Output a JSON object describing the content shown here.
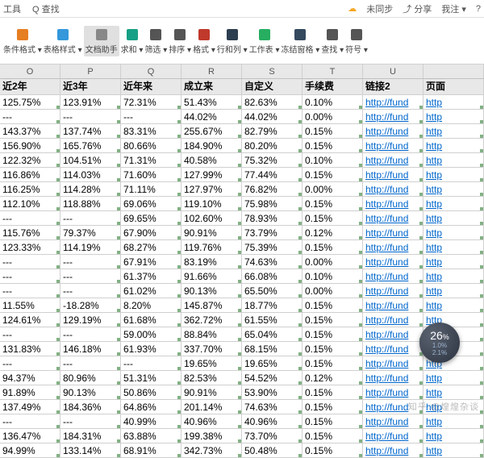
{
  "topbar": {
    "left": [
      "工具",
      "Q 查找"
    ],
    "sync": "未同步",
    "share": "分享",
    "me": "我注",
    "help": "?"
  },
  "ribbon": [
    {
      "icon": "#e67e22",
      "label": "条件格式",
      "dd": true
    },
    {
      "icon": "#3498db",
      "label": "表格样式",
      "dd": true
    },
    {
      "icon": "#888",
      "label": "文档助手",
      "active": true
    },
    {
      "icon": "#16a085",
      "label": "求和",
      "dd": true
    },
    {
      "icon": "#555",
      "label": "筛选",
      "dd": true
    },
    {
      "icon": "#555",
      "label": "排序",
      "dd": true
    },
    {
      "icon": "#c0392b",
      "label": "格式",
      "dd": true
    },
    {
      "icon": "#2c3e50",
      "label": "行和列",
      "dd": true
    },
    {
      "icon": "#27ae60",
      "label": "工作表",
      "dd": true
    },
    {
      "icon": "#34495e",
      "label": "冻结窗格",
      "dd": true
    },
    {
      "icon": "#555",
      "label": "查找",
      "dd": true
    },
    {
      "icon": "#555",
      "label": "符号",
      "dd": true
    }
  ],
  "columns_letters": [
    "O",
    "P",
    "Q",
    "R",
    "S",
    "T",
    "U",
    ""
  ],
  "headers": [
    "近2年",
    "近3年",
    "近年来",
    "成立来",
    "自定义",
    "手续费",
    "链接2",
    "页面"
  ],
  "rows": [
    [
      "125.75%",
      "123.91%",
      "72.31%",
      "51.43%",
      "82.63%",
      "0.10%",
      "http://fund",
      "http"
    ],
    [
      "---",
      "---",
      "---",
      "44.02%",
      "44.02%",
      "0.00%",
      "http://fund",
      "http"
    ],
    [
      "143.37%",
      "137.74%",
      "83.31%",
      "255.67%",
      "82.79%",
      "0.15%",
      "http://fund",
      "http"
    ],
    [
      "156.90%",
      "165.76%",
      "80.66%",
      "184.90%",
      "80.20%",
      "0.15%",
      "http://fund",
      "http"
    ],
    [
      "122.32%",
      "104.51%",
      "71.31%",
      "40.58%",
      "75.32%",
      "0.10%",
      "http://fund",
      "http"
    ],
    [
      "116.86%",
      "114.03%",
      "71.60%",
      "127.99%",
      "77.44%",
      "0.15%",
      "http://fund",
      "http"
    ],
    [
      "116.25%",
      "114.28%",
      "71.11%",
      "127.97%",
      "76.82%",
      "0.00%",
      "http://fund",
      "http"
    ],
    [
      "112.10%",
      "118.88%",
      "69.06%",
      "119.10%",
      "75.98%",
      "0.15%",
      "http://fund",
      "http"
    ],
    [
      "---",
      "---",
      "69.65%",
      "102.60%",
      "78.93%",
      "0.15%",
      "http://fund",
      "http"
    ],
    [
      "115.76%",
      "79.37%",
      "67.90%",
      "90.91%",
      "73.79%",
      "0.12%",
      "http://fund",
      "http"
    ],
    [
      "123.33%",
      "114.19%",
      "68.27%",
      "119.76%",
      "75.39%",
      "0.15%",
      "http://fund",
      "http"
    ],
    [
      "---",
      "---",
      "67.91%",
      "83.19%",
      "74.63%",
      "0.00%",
      "http://fund",
      "http"
    ],
    [
      "---",
      "---",
      "61.37%",
      "91.66%",
      "66.08%",
      "0.10%",
      "http://fund",
      "http"
    ],
    [
      "---",
      "---",
      "61.02%",
      "90.13%",
      "65.50%",
      "0.00%",
      "http://fund",
      "http"
    ],
    [
      "11.55%",
      "-18.28%",
      "8.20%",
      "145.87%",
      "18.77%",
      "0.15%",
      "http://fund",
      "http"
    ],
    [
      "124.61%",
      "129.19%",
      "61.68%",
      "362.72%",
      "61.55%",
      "0.15%",
      "http://fund",
      "http"
    ],
    [
      "---",
      "---",
      "59.00%",
      "88.84%",
      "65.04%",
      "0.15%",
      "http://fund",
      "http"
    ],
    [
      "131.83%",
      "146.18%",
      "61.93%",
      "337.70%",
      "68.15%",
      "0.15%",
      "http://fund",
      "http"
    ],
    [
      "---",
      "---",
      "---",
      "19.65%",
      "19.65%",
      "0.15%",
      "http://fund",
      "http"
    ],
    [
      "94.37%",
      "80.96%",
      "51.31%",
      "82.53%",
      "54.52%",
      "0.12%",
      "http://fund",
      "http"
    ],
    [
      "91.89%",
      "90.13%",
      "50.86%",
      "90.91%",
      "53.90%",
      "0.15%",
      "http://fund",
      "http"
    ],
    [
      "137.49%",
      "184.36%",
      "64.86%",
      "201.14%",
      "74.63%",
      "0.15%",
      "http://fund",
      "http"
    ],
    [
      "---",
      "---",
      "40.99%",
      "40.96%",
      "40.96%",
      "0.15%",
      "http://fund",
      "http"
    ],
    [
      "136.47%",
      "184.31%",
      "63.88%",
      "199.38%",
      "73.70%",
      "0.15%",
      "http://fund",
      "http"
    ],
    [
      "94.99%",
      "133.14%",
      "68.91%",
      "342.73%",
      "50.48%",
      "0.15%",
      "http://fund",
      "http"
    ]
  ],
  "badge": {
    "pct": "26",
    "sub1": "1.0%",
    "sub2": "2.1%"
  },
  "watermark": "知乎 @煌煌杂谈"
}
